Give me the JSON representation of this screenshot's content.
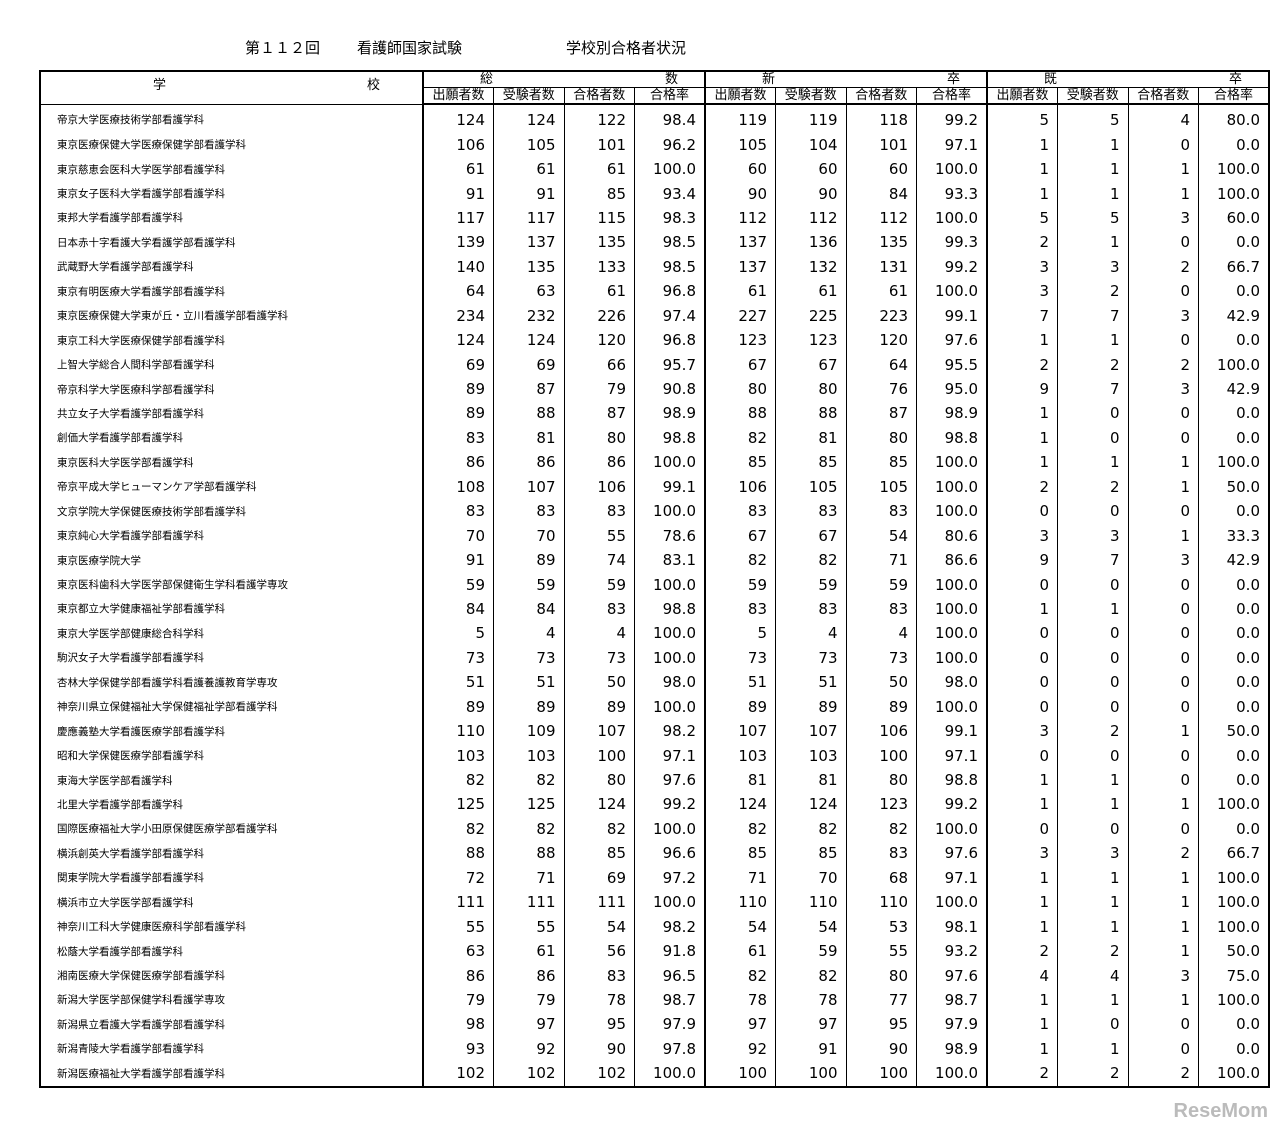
{
  "header": {
    "title": [
      "第１１２回",
      "看護師国家試験",
      "学校別合格者状況"
    ]
  },
  "table": {
    "school_header": [
      "学",
      "校"
    ],
    "groups": [
      [
        "総",
        "数"
      ],
      [
        "新",
        "卒"
      ],
      [
        "既",
        "卒"
      ]
    ],
    "subheaders": [
      "出願者数",
      "受験者数",
      "合格者数",
      "合格率",
      "出願者数",
      "受験者数",
      "合格者数",
      "合格率",
      "出願者数",
      "受験者数",
      "合格者数",
      "合格率"
    ],
    "rows": [
      [
        "帝京大学医療技術学部看護学科",
        "124",
        "124",
        "122",
        "98.4",
        "119",
        "119",
        "118",
        "99.2",
        "5",
        "5",
        "4",
        "80.0"
      ],
      [
        "東京医療保健大学医療保健学部看護学科",
        "106",
        "105",
        "101",
        "96.2",
        "105",
        "104",
        "101",
        "97.1",
        "1",
        "1",
        "0",
        "0.0"
      ],
      [
        "東京慈恵会医科大学医学部看護学科",
        "61",
        "61",
        "61",
        "100.0",
        "60",
        "60",
        "60",
        "100.0",
        "1",
        "1",
        "1",
        "100.0"
      ],
      [
        "東京女子医科大学看護学部看護学科",
        "91",
        "91",
        "85",
        "93.4",
        "90",
        "90",
        "84",
        "93.3",
        "1",
        "1",
        "1",
        "100.0"
      ],
      [
        "東邦大学看護学部看護学科",
        "117",
        "117",
        "115",
        "98.3",
        "112",
        "112",
        "112",
        "100.0",
        "5",
        "5",
        "3",
        "60.0"
      ],
      [
        "日本赤十字看護大学看護学部看護学科",
        "139",
        "137",
        "135",
        "98.5",
        "137",
        "136",
        "135",
        "99.3",
        "2",
        "1",
        "0",
        "0.0"
      ],
      [
        "武蔵野大学看護学部看護学科",
        "140",
        "135",
        "133",
        "98.5",
        "137",
        "132",
        "131",
        "99.2",
        "3",
        "3",
        "2",
        "66.7"
      ],
      [
        "東京有明医療大学看護学部看護学科",
        "64",
        "63",
        "61",
        "96.8",
        "61",
        "61",
        "61",
        "100.0",
        "3",
        "2",
        "0",
        "0.0"
      ],
      [
        "東京医療保健大学東が丘・立川看護学部看護学科",
        "234",
        "232",
        "226",
        "97.4",
        "227",
        "225",
        "223",
        "99.1",
        "7",
        "7",
        "3",
        "42.9"
      ],
      [
        "東京工科大学医療保健学部看護学科",
        "124",
        "124",
        "120",
        "96.8",
        "123",
        "123",
        "120",
        "97.6",
        "1",
        "1",
        "0",
        "0.0"
      ],
      [
        "上智大学総合人間科学部看護学科",
        "69",
        "69",
        "66",
        "95.7",
        "67",
        "67",
        "64",
        "95.5",
        "2",
        "2",
        "2",
        "100.0"
      ],
      [
        "帝京科学大学医療科学部看護学科",
        "89",
        "87",
        "79",
        "90.8",
        "80",
        "80",
        "76",
        "95.0",
        "9",
        "7",
        "3",
        "42.9"
      ],
      [
        "共立女子大学看護学部看護学科",
        "89",
        "88",
        "87",
        "98.9",
        "88",
        "88",
        "87",
        "98.9",
        "1",
        "0",
        "0",
        "0.0"
      ],
      [
        "創価大学看護学部看護学科",
        "83",
        "81",
        "80",
        "98.8",
        "82",
        "81",
        "80",
        "98.8",
        "1",
        "0",
        "0",
        "0.0"
      ],
      [
        "東京医科大学医学部看護学科",
        "86",
        "86",
        "86",
        "100.0",
        "85",
        "85",
        "85",
        "100.0",
        "1",
        "1",
        "1",
        "100.0"
      ],
      [
        "帝京平成大学ヒューマンケア学部看護学科",
        "108",
        "107",
        "106",
        "99.1",
        "106",
        "105",
        "105",
        "100.0",
        "2",
        "2",
        "1",
        "50.0"
      ],
      [
        "文京学院大学保健医療技術学部看護学科",
        "83",
        "83",
        "83",
        "100.0",
        "83",
        "83",
        "83",
        "100.0",
        "0",
        "0",
        "0",
        "0.0"
      ],
      [
        "東京純心大学看護学部看護学科",
        "70",
        "70",
        "55",
        "78.6",
        "67",
        "67",
        "54",
        "80.6",
        "3",
        "3",
        "1",
        "33.3"
      ],
      [
        "東京医療学院大学",
        "91",
        "89",
        "74",
        "83.1",
        "82",
        "82",
        "71",
        "86.6",
        "9",
        "7",
        "3",
        "42.9"
      ],
      [
        "東京医科歯科大学医学部保健衛生学科看護学専攻",
        "59",
        "59",
        "59",
        "100.0",
        "59",
        "59",
        "59",
        "100.0",
        "0",
        "0",
        "0",
        "0.0"
      ],
      [
        "東京都立大学健康福祉学部看護学科",
        "84",
        "84",
        "83",
        "98.8",
        "83",
        "83",
        "83",
        "100.0",
        "1",
        "1",
        "0",
        "0.0"
      ],
      [
        "東京大学医学部健康総合科学科",
        "5",
        "4",
        "4",
        "100.0",
        "5",
        "4",
        "4",
        "100.0",
        "0",
        "0",
        "0",
        "0.0"
      ],
      [
        "駒沢女子大学看護学部看護学科",
        "73",
        "73",
        "73",
        "100.0",
        "73",
        "73",
        "73",
        "100.0",
        "0",
        "0",
        "0",
        "0.0"
      ],
      [
        "杏林大学保健学部看護学科看護養護教育学専攻",
        "51",
        "51",
        "50",
        "98.0",
        "51",
        "51",
        "50",
        "98.0",
        "0",
        "0",
        "0",
        "0.0"
      ],
      [
        "神奈川県立保健福祉大学保健福祉学部看護学科",
        "89",
        "89",
        "89",
        "100.0",
        "89",
        "89",
        "89",
        "100.0",
        "0",
        "0",
        "0",
        "0.0"
      ],
      [
        "慶應義塾大学看護医療学部看護学科",
        "110",
        "109",
        "107",
        "98.2",
        "107",
        "107",
        "106",
        "99.1",
        "3",
        "2",
        "1",
        "50.0"
      ],
      [
        "昭和大学保健医療学部看護学科",
        "103",
        "103",
        "100",
        "97.1",
        "103",
        "103",
        "100",
        "97.1",
        "0",
        "0",
        "0",
        "0.0"
      ],
      [
        "東海大学医学部看護学科",
        "82",
        "82",
        "80",
        "97.6",
        "81",
        "81",
        "80",
        "98.8",
        "1",
        "1",
        "0",
        "0.0"
      ],
      [
        "北里大学看護学部看護学科",
        "125",
        "125",
        "124",
        "99.2",
        "124",
        "124",
        "123",
        "99.2",
        "1",
        "1",
        "1",
        "100.0"
      ],
      [
        "国際医療福祉大学小田原保健医療学部看護学科",
        "82",
        "82",
        "82",
        "100.0",
        "82",
        "82",
        "82",
        "100.0",
        "0",
        "0",
        "0",
        "0.0"
      ],
      [
        "横浜創英大学看護学部看護学科",
        "88",
        "88",
        "85",
        "96.6",
        "85",
        "85",
        "83",
        "97.6",
        "3",
        "3",
        "2",
        "66.7"
      ],
      [
        "関東学院大学看護学部看護学科",
        "72",
        "71",
        "69",
        "97.2",
        "71",
        "70",
        "68",
        "97.1",
        "1",
        "1",
        "1",
        "100.0"
      ],
      [
        "横浜市立大学医学部看護学科",
        "111",
        "111",
        "111",
        "100.0",
        "110",
        "110",
        "110",
        "100.0",
        "1",
        "1",
        "1",
        "100.0"
      ],
      [
        "神奈川工科大学健康医療科学部看護学科",
        "55",
        "55",
        "54",
        "98.2",
        "54",
        "54",
        "53",
        "98.1",
        "1",
        "1",
        "1",
        "100.0"
      ],
      [
        "松蔭大学看護学部看護学科",
        "63",
        "61",
        "56",
        "91.8",
        "61",
        "59",
        "55",
        "93.2",
        "2",
        "2",
        "1",
        "50.0"
      ],
      [
        "湘南医療大学保健医療学部看護学科",
        "86",
        "86",
        "83",
        "96.5",
        "82",
        "82",
        "80",
        "97.6",
        "4",
        "4",
        "3",
        "75.0"
      ],
      [
        "新潟大学医学部保健学科看護学専攻",
        "79",
        "79",
        "78",
        "98.7",
        "78",
        "78",
        "77",
        "98.7",
        "1",
        "1",
        "1",
        "100.0"
      ],
      [
        "新潟県立看護大学看護学部看護学科",
        "98",
        "97",
        "95",
        "97.9",
        "97",
        "97",
        "95",
        "97.9",
        "1",
        "0",
        "0",
        "0.0"
      ],
      [
        "新潟青陵大学看護学部看護学科",
        "93",
        "92",
        "90",
        "97.8",
        "92",
        "91",
        "90",
        "98.9",
        "1",
        "1",
        "0",
        "0.0"
      ],
      [
        "新潟医療福祉大学看護学部看護学科",
        "102",
        "102",
        "102",
        "100.0",
        "100",
        "100",
        "100",
        "100.0",
        "2",
        "2",
        "2",
        "100.0"
      ]
    ]
  },
  "watermark": "ReseMom"
}
